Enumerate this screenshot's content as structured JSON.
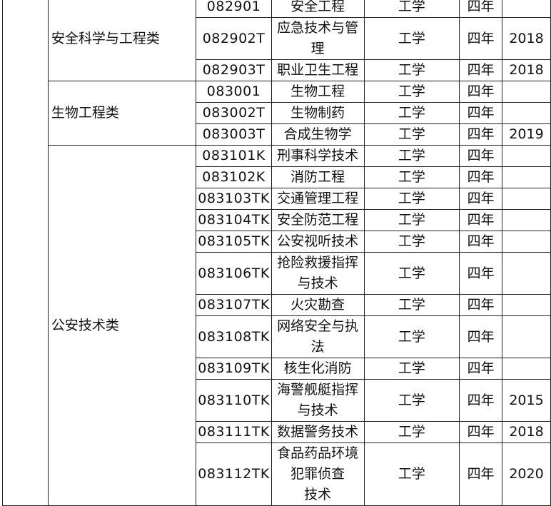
{
  "groups": [
    {
      "name": "安全科学与工程类",
      "majors": [
        {
          "code": "082901",
          "name": "安全工程",
          "discipline": "工学",
          "duration": "四年",
          "year": ""
        },
        {
          "code": "082902T",
          "name": "应急技术与管\n理",
          "discipline": "工学",
          "duration": "四年",
          "year": "2018"
        },
        {
          "code": "082903T",
          "name": "职业卫生工程",
          "discipline": "工学",
          "duration": "四年",
          "year": "2018"
        }
      ]
    },
    {
      "name": "生物工程类",
      "majors": [
        {
          "code": "083001",
          "name": "生物工程",
          "discipline": "工学",
          "duration": "四年",
          "year": ""
        },
        {
          "code": "083002T",
          "name": "生物制药",
          "discipline": "工学",
          "duration": "四年",
          "year": ""
        },
        {
          "code": "083003T",
          "name": "合成生物学",
          "discipline": "工学",
          "duration": "四年",
          "year": "2019"
        }
      ]
    },
    {
      "name": "公安技术类",
      "majors": [
        {
          "code": "083101K",
          "name": "刑事科学技术",
          "discipline": "工学",
          "duration": "四年",
          "year": ""
        },
        {
          "code": "083102K",
          "name": "消防工程",
          "discipline": "工学",
          "duration": "四年",
          "year": ""
        },
        {
          "code": "083103TK",
          "name": "交通管理工程",
          "discipline": "工学",
          "duration": "四年",
          "year": ""
        },
        {
          "code": "083104TK",
          "name": "安全防范工程",
          "discipline": "工学",
          "duration": "四年",
          "year": ""
        },
        {
          "code": "083105TK",
          "name": "公安视听技术",
          "discipline": "工学",
          "duration": "四年",
          "year": ""
        },
        {
          "code": "083106TK",
          "name": "抢险救援指挥\n与技术",
          "discipline": "工学",
          "duration": "四年",
          "year": ""
        },
        {
          "code": "083107TK",
          "name": "火灾勘查",
          "discipline": "工学",
          "duration": "四年",
          "year": ""
        },
        {
          "code": "083108TK",
          "name": "网络安全与执\n法",
          "discipline": "工学",
          "duration": "四年",
          "year": ""
        },
        {
          "code": "083109TK",
          "name": "核生化消防",
          "discipline": "工学",
          "duration": "四年",
          "year": ""
        },
        {
          "code": "083110TK",
          "name": "海警舰艇指挥\n与技术",
          "discipline": "工学",
          "duration": "四年",
          "year": "2015"
        },
        {
          "code": "083111TK",
          "name": "数据警务技术",
          "discipline": "工学",
          "duration": "四年",
          "year": "2018"
        },
        {
          "code": "083112TK",
          "name": "食品药品环境\n犯罪侦查\n技术",
          "discipline": "工学",
          "duration": "四年",
          "year": "2020"
        }
      ]
    }
  ]
}
